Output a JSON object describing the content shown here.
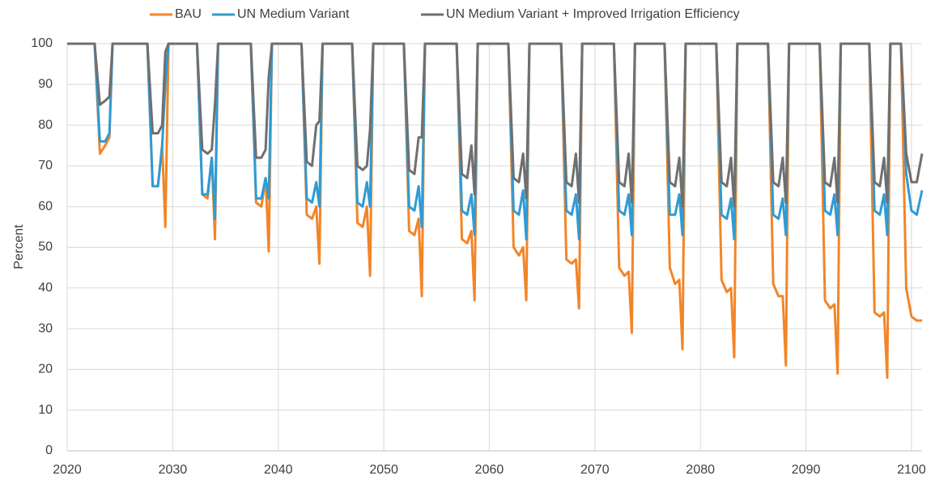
{
  "chart_data": {
    "type": "line",
    "y_label": "Percent",
    "x": [
      2020,
      2022.6,
      2023.1,
      2023.6,
      2024,
      2024.3,
      2024.6,
      2027.6,
      2028.1,
      2028.6,
      2029,
      2029.3,
      2029.6,
      2032.3,
      2032.8,
      2033.3,
      2033.7,
      2034,
      2034.3,
      2037.4,
      2037.9,
      2038.4,
      2038.8,
      2039.1,
      2039.4,
      2042.2,
      2042.7,
      2043.2,
      2043.6,
      2043.9,
      2044.2,
      2047,
      2047.5,
      2048,
      2048.4,
      2048.7,
      2049,
      2051.9,
      2052.4,
      2052.9,
      2053.3,
      2053.6,
      2053.9,
      2056.9,
      2057.4,
      2057.9,
      2058.3,
      2058.6,
      2058.9,
      2061.8,
      2062.3,
      2062.8,
      2063.2,
      2063.5,
      2063.8,
      2066.8,
      2067.3,
      2067.8,
      2068.2,
      2068.5,
      2068.8,
      2071.8,
      2072.3,
      2072.8,
      2073.2,
      2073.5,
      2073.8,
      2076.6,
      2077.1,
      2077.6,
      2078,
      2078.3,
      2078.6,
      2081.5,
      2082,
      2082.5,
      2082.9,
      2083.2,
      2083.5,
      2086.4,
      2086.9,
      2087.4,
      2087.8,
      2088.1,
      2088.4,
      2091.3,
      2091.8,
      2092.3,
      2092.7,
      2093,
      2093.3,
      2096,
      2096.5,
      2097,
      2097.4,
      2097.7,
      2098,
      2099,
      2099.5,
      2100,
      2100.5,
      2101
    ],
    "series": [
      {
        "name": "BAU",
        "color": "#f28527",
        "values": [
          100,
          100,
          73,
          75,
          77,
          100,
          100,
          100,
          65,
          65,
          75,
          55,
          100,
          100,
          63,
          62,
          72,
          52,
          100,
          100,
          61,
          60,
          67,
          49,
          100,
          100,
          58,
          57,
          60,
          46,
          100,
          100,
          56,
          55,
          60,
          43,
          100,
          100,
          54,
          53,
          57,
          38,
          100,
          100,
          52,
          51,
          54,
          37,
          100,
          100,
          50,
          48,
          50,
          37,
          100,
          100,
          47,
          46,
          47,
          35,
          100,
          100,
          45,
          43,
          44,
          29,
          100,
          100,
          45,
          41,
          42,
          25,
          100,
          100,
          42,
          39,
          40,
          23,
          100,
          100,
          41,
          38,
          38,
          21,
          100,
          100,
          37,
          35,
          36,
          19,
          100,
          100,
          34,
          33,
          34,
          18,
          100,
          100,
          40,
          33,
          32,
          32
        ]
      },
      {
        "name": "UN Medium Variant",
        "color": "#2e9bd6",
        "values": [
          100,
          100,
          76,
          76,
          78,
          100,
          100,
          100,
          65,
          65,
          75,
          90,
          100,
          100,
          63,
          63,
          72,
          57,
          100,
          100,
          62,
          62,
          67,
          62,
          100,
          100,
          62,
          61,
          66,
          60,
          100,
          100,
          61,
          60,
          66,
          60,
          100,
          100,
          60,
          59,
          65,
          55,
          100,
          100,
          59,
          58,
          63,
          53,
          100,
          100,
          59,
          58,
          64,
          52,
          100,
          100,
          59,
          58,
          63,
          52,
          100,
          100,
          59,
          58,
          63,
          53,
          100,
          100,
          58,
          58,
          63,
          53,
          100,
          100,
          58,
          57,
          62,
          52,
          100,
          100,
          58,
          57,
          62,
          53,
          100,
          100,
          59,
          58,
          63,
          53,
          100,
          100,
          59,
          58,
          63,
          53,
          100,
          100,
          68,
          59,
          58,
          64
        ]
      },
      {
        "name": "UN Medium Variant + Improved Irrigation Efficiency",
        "color": "#6f6f6f",
        "values": [
          100,
          100,
          85,
          86,
          87,
          100,
          100,
          100,
          78,
          78,
          80,
          98,
          100,
          100,
          74,
          73,
          74,
          85,
          100,
          100,
          72,
          72,
          74,
          92,
          100,
          100,
          71,
          70,
          80,
          81,
          100,
          100,
          70,
          69,
          70,
          79,
          100,
          100,
          69,
          68,
          77,
          77,
          100,
          100,
          68,
          67,
          75,
          63,
          100,
          100,
          67,
          66,
          73,
          62,
          100,
          100,
          66,
          65,
          73,
          61,
          100,
          100,
          66,
          65,
          73,
          61,
          100,
          100,
          66,
          65,
          72,
          60,
          100,
          100,
          66,
          65,
          72,
          60,
          100,
          100,
          66,
          65,
          72,
          61,
          100,
          100,
          66,
          65,
          72,
          61,
          100,
          100,
          66,
          65,
          72,
          61,
          100,
          100,
          73,
          66,
          66,
          73
        ]
      }
    ],
    "xlim": [
      2020,
      2101
    ],
    "xticks": [
      2020,
      2030,
      2040,
      2050,
      2060,
      2070,
      2080,
      2090,
      2100
    ],
    "ylim": [
      0,
      100
    ],
    "yticks": [
      0,
      10,
      20,
      30,
      40,
      50,
      60,
      70,
      80,
      90,
      100
    ],
    "grid": true,
    "legend": "top"
  }
}
